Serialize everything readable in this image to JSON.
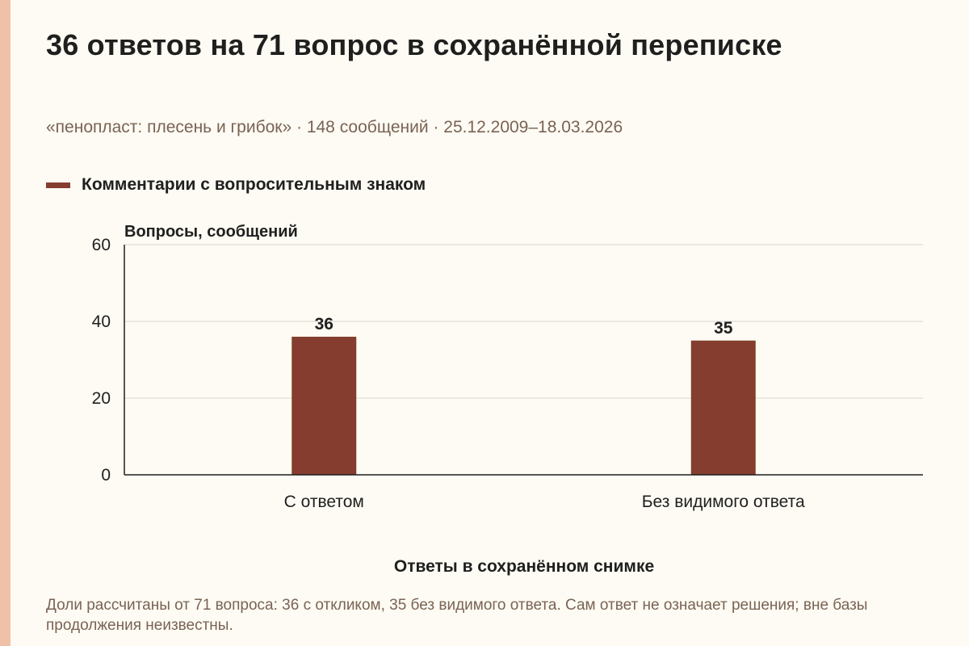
{
  "title": "36 ответов на 71 вопрос в сохранённой переписке",
  "subtitle": "«пенопласт: плесень и грибок» · 148 сообщений · 25.12.2009–18.03.2026",
  "legend": {
    "label": "Комментарии с вопросительным знаком"
  },
  "colors": {
    "bar": "#843d2e",
    "background": "#fdfbf3",
    "stripe": "#f0c0a8",
    "grid": "#d9d6cf",
    "axis": "#1f1f1f",
    "muted_text": "#7a6354"
  },
  "chart_data": {
    "type": "bar",
    "categories": [
      "С ответом",
      "Без видимого ответа"
    ],
    "series": [
      {
        "name": "Комментарии с вопросительным знаком",
        "values": [
          36,
          35
        ]
      }
    ],
    "data_labels": [
      "36",
      "35"
    ],
    "xlabel": "Ответы в сохранённом снимке",
    "ylabel": "Вопросы, сообщений",
    "ylim": [
      0,
      60
    ],
    "yticks": [
      0,
      20,
      40,
      60
    ],
    "grid": true,
    "legend_position": "top-left"
  },
  "footnote": "Доли рассчитаны от 71 вопроса: 36 с откликом, 35 без видимого ответа. Сам ответ не означает решения; вне базы продолжения неизвестны."
}
